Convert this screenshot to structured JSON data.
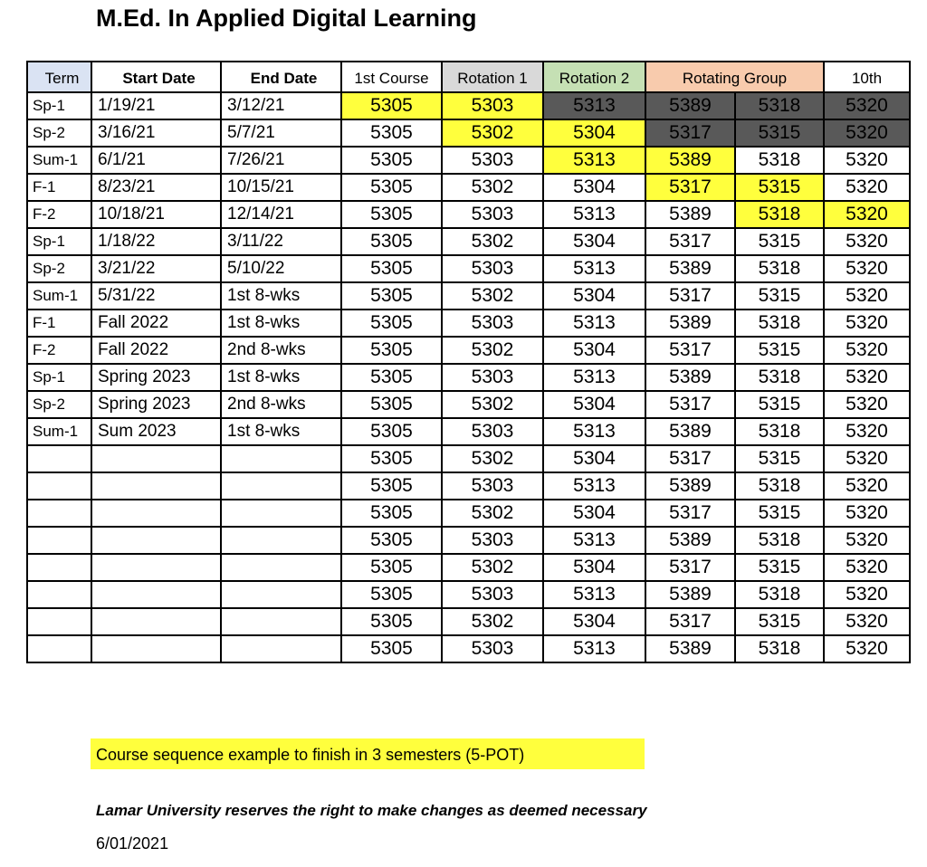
{
  "title": "M.Ed. In Applied Digital Learning",
  "columns": [
    "Term",
    "Start Date",
    "End Date",
    "1st Course",
    "Rotation 1",
    "Rotation 2",
    "Rotating Group",
    "10th"
  ],
  "colors": {
    "term_header": "#dae3f3",
    "rotation1_header": "#d9d9d9",
    "rotation2_header": "#c5e0b4",
    "rotating_group_header": "#f8cbad",
    "highlight": "#ffff3d",
    "completed": "#595959"
  },
  "rows": [
    {
      "term": "Sp-1",
      "start": "1/19/21",
      "end": "3/12/21",
      "c1": "5305",
      "r1": "5303",
      "r2": "5313",
      "g1": "5389",
      "g2": "5318",
      "t": "5320"
    },
    {
      "term": "Sp-2",
      "start": "3/16/21",
      "end": "5/7/21",
      "c1": "5305",
      "r1": "5302",
      "r2": "5304",
      "g1": "5317",
      "g2": "5315",
      "t": "5320"
    },
    {
      "term": "Sum-1",
      "start": "6/1/21",
      "end": "7/26/21",
      "c1": "5305",
      "r1": "5303",
      "r2": "5313",
      "g1": "5389",
      "g2": "5318",
      "t": "5320"
    },
    {
      "term": "F-1",
      "start": "8/23/21",
      "end": "10/15/21",
      "c1": "5305",
      "r1": "5302",
      "r2": "5304",
      "g1": "5317",
      "g2": "5315",
      "t": "5320"
    },
    {
      "term": "F-2",
      "start": "10/18/21",
      "end": "12/14/21",
      "c1": "5305",
      "r1": "5303",
      "r2": "5313",
      "g1": "5389",
      "g2": "5318",
      "t": "5320"
    },
    {
      "term": "Sp-1",
      "start": "1/18/22",
      "end": "3/11/22",
      "c1": "5305",
      "r1": "5302",
      "r2": "5304",
      "g1": "5317",
      "g2": "5315",
      "t": "5320"
    },
    {
      "term": "Sp-2",
      "start": "3/21/22",
      "end": "5/10/22",
      "c1": "5305",
      "r1": "5303",
      "r2": "5313",
      "g1": "5389",
      "g2": "5318",
      "t": "5320"
    },
    {
      "term": "Sum-1",
      "start": "5/31/22",
      "end": "1st 8-wks",
      "c1": "5305",
      "r1": "5302",
      "r2": "5304",
      "g1": "5317",
      "g2": "5315",
      "t": "5320"
    },
    {
      "term": "F-1",
      "start": "Fall 2022",
      "end": "1st 8-wks",
      "c1": "5305",
      "r1": "5303",
      "r2": "5313",
      "g1": "5389",
      "g2": "5318",
      "t": "5320"
    },
    {
      "term": "F-2",
      "start": "Fall 2022",
      "end": "2nd 8-wks",
      "c1": "5305",
      "r1": "5302",
      "r2": "5304",
      "g1": "5317",
      "g2": "5315",
      "t": "5320"
    },
    {
      "term": "Sp-1",
      "start": "Spring 2023",
      "end": "1st 8-wks",
      "c1": "5305",
      "r1": "5303",
      "r2": "5313",
      "g1": "5389",
      "g2": "5318",
      "t": "5320"
    },
    {
      "term": "Sp-2",
      "start": "Spring 2023",
      "end": "2nd 8-wks",
      "c1": "5305",
      "r1": "5302",
      "r2": "5304",
      "g1": "5317",
      "g2": "5315",
      "t": "5320"
    },
    {
      "term": "Sum-1",
      "start": "Sum 2023",
      "end": "1st 8-wks",
      "c1": "5305",
      "r1": "5303",
      "r2": "5313",
      "g1": "5389",
      "g2": "5318",
      "t": "5320"
    },
    {
      "term": "",
      "start": "",
      "end": "",
      "c1": "5305",
      "r1": "5302",
      "r2": "5304",
      "g1": "5317",
      "g2": "5315",
      "t": "5320"
    },
    {
      "term": "",
      "start": "",
      "end": "",
      "c1": "5305",
      "r1": "5303",
      "r2": "5313",
      "g1": "5389",
      "g2": "5318",
      "t": "5320"
    },
    {
      "term": "",
      "start": "",
      "end": "",
      "c1": "5305",
      "r1": "5302",
      "r2": "5304",
      "g1": "5317",
      "g2": "5315",
      "t": "5320"
    },
    {
      "term": "",
      "start": "",
      "end": "",
      "c1": "5305",
      "r1": "5303",
      "r2": "5313",
      "g1": "5389",
      "g2": "5318",
      "t": "5320"
    },
    {
      "term": "",
      "start": "",
      "end": "",
      "c1": "5305",
      "r1": "5302",
      "r2": "5304",
      "g1": "5317",
      "g2": "5315",
      "t": "5320"
    },
    {
      "term": "",
      "start": "",
      "end": "",
      "c1": "5305",
      "r1": "5303",
      "r2": "5313",
      "g1": "5389",
      "g2": "5318",
      "t": "5320"
    },
    {
      "term": "",
      "start": "",
      "end": "",
      "c1": "5305",
      "r1": "5302",
      "r2": "5304",
      "g1": "5317",
      "g2": "5315",
      "t": "5320"
    },
    {
      "term": "",
      "start": "",
      "end": "",
      "c1": "5305",
      "r1": "5303",
      "r2": "5313",
      "g1": "5389",
      "g2": "5318",
      "t": "5320"
    }
  ],
  "legend_note": "Course sequence example to finish in 3 semesters (5-POT)",
  "disclaimer": "Lamar University reserves the right to make changes as deemed necessary",
  "date": "6/01/2021"
}
